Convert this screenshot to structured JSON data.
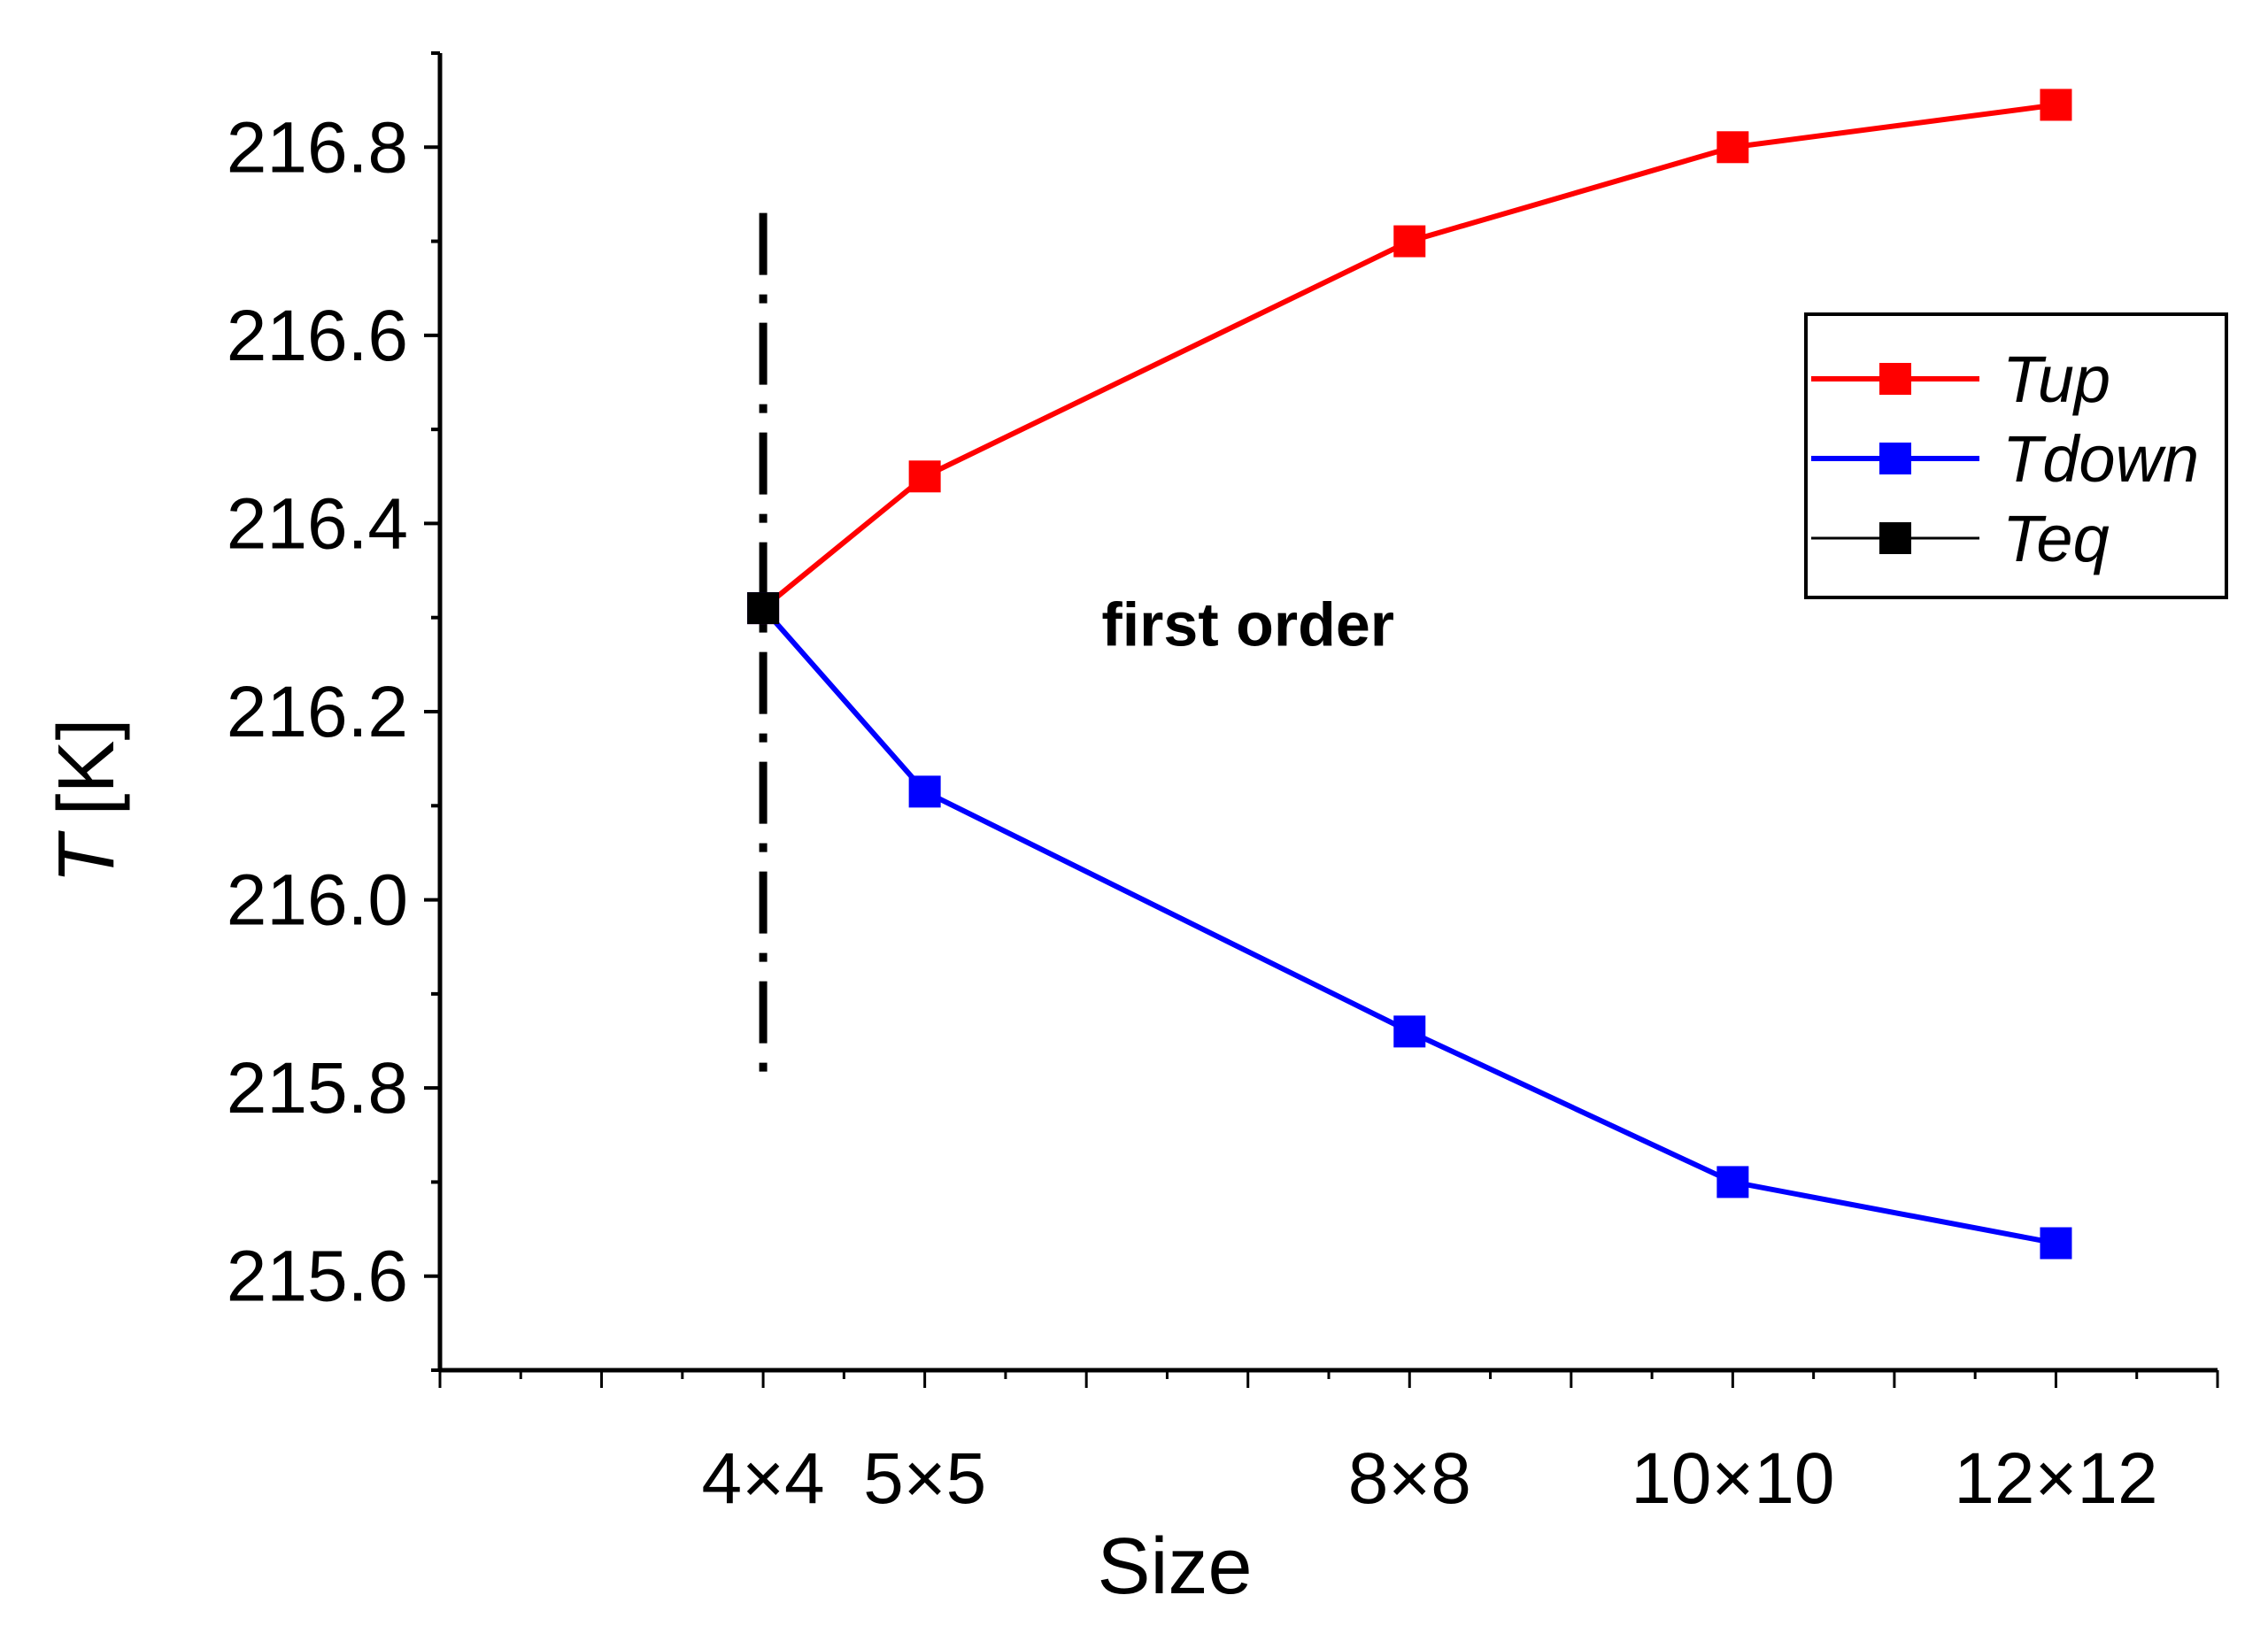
{
  "chart_data": {
    "type": "line",
    "title": "",
    "xlabel": "Size",
    "ylabel": {
      "symbol": "T",
      "unit": "[K]"
    },
    "categories": [
      "4×4",
      "5×5",
      "8×8",
      "10×10",
      "12×12"
    ],
    "x": [
      4,
      5,
      8,
      10,
      12
    ],
    "xlim": [
      2,
      13
    ],
    "ylim": [
      215.5,
      216.9
    ],
    "yticks": [
      "215.6",
      "215.8",
      "216.0",
      "216.2",
      "216.4",
      "216.6",
      "216.8"
    ],
    "ytick_values": [
      215.6,
      215.8,
      216.0,
      216.2,
      216.4,
      216.6,
      216.8
    ],
    "series": [
      {
        "name": "Tup",
        "color": "#ff0000",
        "marker": "square",
        "line": "solid",
        "x": [
          4,
          5,
          8,
          10,
          12
        ],
        "values": [
          216.31,
          216.45,
          216.7,
          216.8,
          216.845
        ]
      },
      {
        "name": "Tdown",
        "color": "#0000ff",
        "marker": "square",
        "line": "solid",
        "x": [
          4,
          5,
          8,
          10,
          12
        ],
        "values": [
          216.31,
          216.115,
          215.86,
          215.7,
          215.635
        ]
      },
      {
        "name": "Teq",
        "color": "#000000",
        "marker": "square",
        "line": "dash-dot",
        "x": [
          4
        ],
        "values": [
          216.31
        ],
        "vline": {
          "x": 4,
          "ymin": 215.8,
          "ymax": 216.73
        }
      }
    ],
    "annotations": [
      {
        "text": "first order",
        "x": 7.0,
        "y": 216.27
      }
    ],
    "legend_position": "top-right",
    "grid": false
  }
}
